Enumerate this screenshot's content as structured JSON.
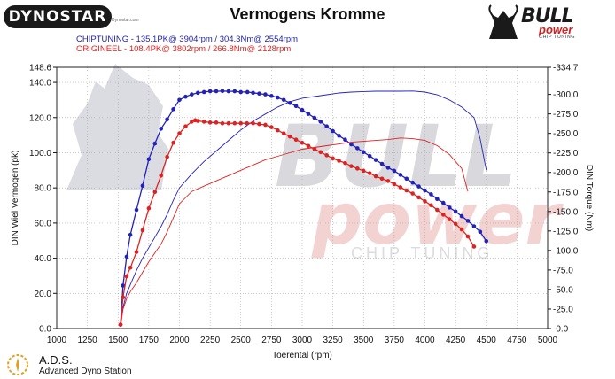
{
  "header": {
    "brand": "DYNOSTAR",
    "brand_sub": "Dynostar.com",
    "title": "Vermogens Kromme",
    "legend_chiptuning": "CHIPTUNING  - 135.1PK@ 3904rpm / 304.3Nm@ 2554rpm",
    "legend_origineel": "ORIGINEEL  - 108.4PK@ 3802rpm / 266.8Nm@ 2128rpm",
    "logo_bull": "BULL",
    "logo_power": "power",
    "logo_chiptuning": "CHIP TUNING"
  },
  "watermark": {
    "bull": "BULL",
    "power": "power",
    "chip": "CHIP TUNING"
  },
  "footer": {
    "ads_name": "A.D.S.",
    "ads_full": "Advanced Dyno Station"
  },
  "colors": {
    "chiptuning": "#2222bb",
    "origineel": "#dd2222",
    "grid": "#aaaaaa"
  },
  "chart_data": {
    "type": "line",
    "title": "Vermogens Kromme",
    "xlabel": "Toerental (rpm)",
    "ylabel": "DIN Wiel Vermogen (pk)",
    "y2label": "DIN Torque (Nm)",
    "xlim": [
      1000,
      5000
    ],
    "ylim": [
      0,
      148.6
    ],
    "y2lim": [
      0,
      334.7
    ],
    "grid": true,
    "x_ticks": [
      1000,
      1250,
      1500,
      1750,
      2000,
      2250,
      2500,
      2750,
      3000,
      3250,
      3500,
      3750,
      4000,
      4250,
      4500,
      4750,
      5000
    ],
    "y_ticks": [
      0,
      20,
      40,
      60,
      80,
      100,
      120,
      140,
      148.6
    ],
    "y_tick_labels": [
      "0.0",
      "20.0",
      "40.0",
      "60.0",
      "80.0",
      "100.0",
      "120.0",
      "140.0",
      "148.6"
    ],
    "y2_ticks": [
      0,
      25,
      50,
      75,
      100,
      125,
      150,
      175,
      200,
      225,
      250,
      275,
      300,
      334.7
    ],
    "y2_tick_labels": [
      "0.0",
      "25.0",
      "50.0",
      "75.0",
      "100.0",
      "125.0",
      "150.0",
      "175.0",
      "200.0",
      "225.0",
      "250.0",
      "275.0",
      "300.0",
      "334.7"
    ],
    "series": [
      {
        "name": "CHIPTUNING",
        "kind": "torque",
        "axis": "y2",
        "x": [
          1520,
          1540,
          1570,
          1600,
          1650,
          1700,
          1750,
          1800,
          1850,
          1900,
          1950,
          2000,
          2050,
          2100,
          2150,
          2200,
          2250,
          2300,
          2350,
          2400,
          2450,
          2500,
          2554,
          2600,
          2650,
          2700,
          2750,
          2800,
          2850,
          2900,
          2950,
          3000,
          3050,
          3100,
          3150,
          3200,
          3250,
          3300,
          3350,
          3400,
          3450,
          3500,
          3550,
          3600,
          3650,
          3700,
          3750,
          3800,
          3850,
          3900,
          3950,
          4000,
          4050,
          4100,
          4150,
          4200,
          4250,
          4300,
          4350,
          4400,
          4450,
          4500
        ],
        "y": [
          5,
          55,
          92,
          120,
          152,
          183,
          217,
          237,
          256,
          268,
          281,
          293,
          297,
          300,
          302,
          303,
          304,
          304,
          304.3,
          304,
          304,
          303,
          303,
          302,
          301,
          300,
          298,
          296,
          293,
          289,
          285,
          280,
          275,
          270,
          265,
          259,
          253,
          247,
          242,
          236,
          231,
          226,
          221,
          216,
          211,
          206,
          202,
          197,
          192,
          187,
          182,
          177,
          172,
          166,
          161,
          155,
          150,
          144,
          138,
          131,
          124,
          112
        ]
      },
      {
        "name": "CHIPTUNING",
        "kind": "power",
        "axis": "y",
        "x": [
          1520,
          1540,
          1570,
          1600,
          1650,
          1700,
          1750,
          1800,
          1850,
          1900,
          1950,
          2000,
          2100,
          2200,
          2300,
          2400,
          2500,
          2600,
          2700,
          2800,
          2900,
          3000,
          3100,
          3200,
          3300,
          3400,
          3500,
          3600,
          3700,
          3800,
          3904,
          4000,
          4100,
          4200,
          4300,
          4400,
          4450,
          4500
        ],
        "y": [
          1,
          12,
          20,
          25,
          33,
          40,
          46,
          52,
          58,
          65,
          73,
          80,
          88,
          95,
          101,
          107,
          113,
          118,
          122,
          126,
          129,
          131,
          132,
          133,
          134,
          134.5,
          134.8,
          135,
          135,
          135,
          135.1,
          134.5,
          133,
          130,
          126,
          120,
          108,
          90
        ]
      },
      {
        "name": "ORIGINEEL",
        "kind": "torque",
        "axis": "y2",
        "x": [
          1520,
          1540,
          1570,
          1600,
          1650,
          1700,
          1750,
          1800,
          1850,
          1900,
          1950,
          2000,
          2050,
          2100,
          2128,
          2150,
          2200,
          2250,
          2300,
          2350,
          2400,
          2450,
          2500,
          2550,
          2600,
          2650,
          2700,
          2750,
          2800,
          2850,
          2900,
          2950,
          3000,
          3050,
          3100,
          3150,
          3200,
          3250,
          3300,
          3350,
          3400,
          3450,
          3500,
          3550,
          3600,
          3650,
          3700,
          3750,
          3800,
          3850,
          3900,
          3950,
          4000,
          4050,
          4100,
          4150,
          4200,
          4250,
          4300,
          4350,
          4400
        ],
        "y": [
          5,
          40,
          67,
          78,
          98,
          126,
          154,
          175,
          196,
          220,
          238,
          250,
          259,
          265,
          266.8,
          266,
          265,
          264,
          264,
          263,
          263,
          263,
          263,
          263,
          263,
          262,
          261,
          258,
          254,
          250,
          246,
          242,
          238,
          234,
          230,
          226,
          222,
          218,
          215,
          212,
          208,
          205,
          202,
          199,
          195,
          192,
          189,
          185,
          181,
          177,
          173,
          168,
          163,
          158,
          152,
          146,
          140,
          134,
          127,
          118,
          105
        ]
      },
      {
        "name": "ORIGINEEL",
        "kind": "power",
        "axis": "y",
        "x": [
          1520,
          1540,
          1570,
          1600,
          1650,
          1700,
          1750,
          1800,
          1850,
          1900,
          1950,
          2000,
          2100,
          2200,
          2300,
          2400,
          2500,
          2600,
          2700,
          2800,
          2900,
          3000,
          3100,
          3200,
          3300,
          3400,
          3500,
          3600,
          3700,
          3802,
          3900,
          4000,
          4100,
          4200,
          4300,
          4350
        ],
        "y": [
          1,
          11,
          17,
          21,
          26,
          32,
          38,
          43,
          48,
          55,
          63,
          71,
          78,
          81,
          84,
          87,
          90,
          93,
          96,
          98,
          100,
          102,
          103,
          104,
          105,
          106,
          106.5,
          107,
          107.5,
          108.4,
          108,
          107,
          104,
          99,
          91,
          78
        ]
      }
    ]
  }
}
